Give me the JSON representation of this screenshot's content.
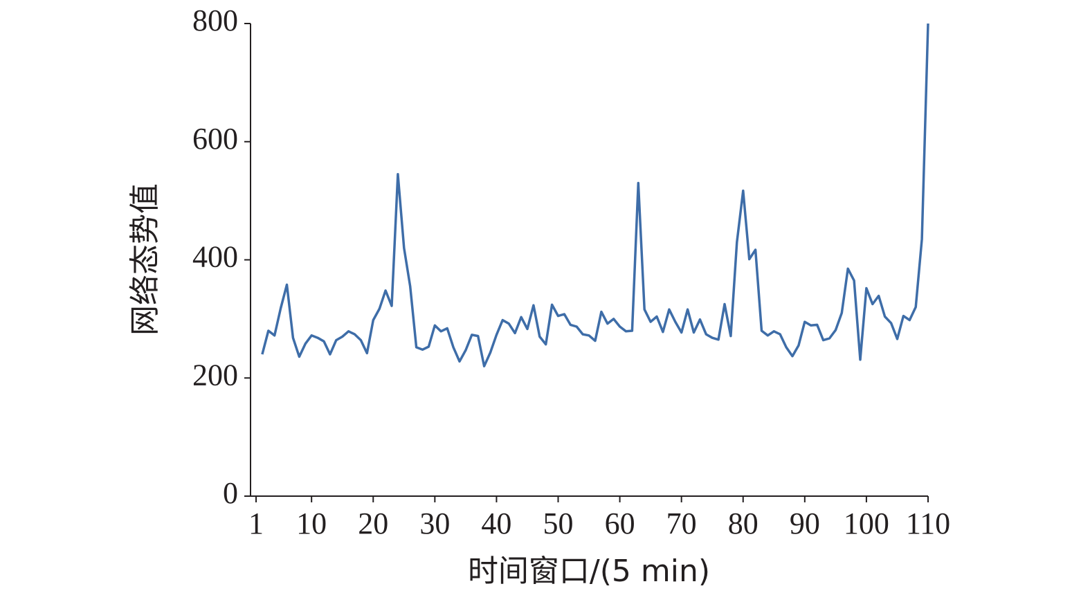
{
  "chart_data": {
    "type": "line",
    "xlabel": "时间窗口/(5 min)",
    "ylabel": "网络态势值",
    "x": [
      2,
      3,
      4,
      5,
      6,
      7,
      8,
      9,
      10,
      11,
      12,
      13,
      14,
      15,
      16,
      17,
      18,
      19,
      20,
      21,
      22,
      23,
      24,
      25,
      26,
      27,
      28,
      29,
      30,
      31,
      32,
      33,
      34,
      35,
      36,
      37,
      38,
      39,
      40,
      41,
      42,
      43,
      44,
      45,
      46,
      47,
      48,
      49,
      50,
      51,
      52,
      53,
      54,
      55,
      56,
      57,
      58,
      59,
      60,
      61,
      62,
      63,
      64,
      65,
      66,
      67,
      68,
      69,
      70,
      71,
      72,
      73,
      74,
      75,
      76,
      77,
      78,
      79,
      80,
      81,
      82,
      83,
      84,
      85,
      86,
      87,
      88,
      89,
      90,
      91,
      92,
      93,
      94,
      95,
      96,
      97,
      98,
      99,
      100,
      101,
      102,
      103,
      104,
      105,
      106,
      107,
      108,
      109,
      110
    ],
    "series": [
      {
        "name": "网络态势值",
        "color": "#3e6da8",
        "values": [
          240,
          280,
          272,
          318,
          358,
          268,
          236,
          258,
          272,
          268,
          262,
          240,
          264,
          270,
          279,
          274,
          264,
          242,
          298,
          317,
          348,
          322,
          545,
          420,
          355,
          252,
          248,
          253,
          289,
          279,
          284,
          252,
          228,
          247,
          273,
          271,
          220,
          243,
          273,
          298,
          292,
          276,
          303,
          283,
          323,
          270,
          257,
          324,
          305,
          308,
          290,
          287,
          274,
          272,
          263,
          312,
          292,
          300,
          287,
          279,
          280,
          530,
          316,
          295,
          304,
          278,
          316,
          295,
          277,
          316,
          277,
          299,
          274,
          268,
          265,
          325,
          271,
          430,
          517,
          401,
          417,
          280,
          272,
          279,
          274,
          252,
          237,
          255,
          295,
          289,
          290,
          264,
          267,
          281,
          310,
          385,
          365,
          231,
          352,
          325,
          339,
          304,
          293,
          266,
          305,
          298,
          320,
          435,
          800
        ]
      }
    ],
    "xlim": [
      1,
      110
    ],
    "xticks": [
      1,
      10,
      20,
      30,
      40,
      50,
      60,
      70,
      80,
      90,
      100,
      110
    ],
    "ylim": [
      0,
      800
    ],
    "yticks": [
      0,
      200,
      400,
      600,
      800
    ],
    "grid": false
  }
}
